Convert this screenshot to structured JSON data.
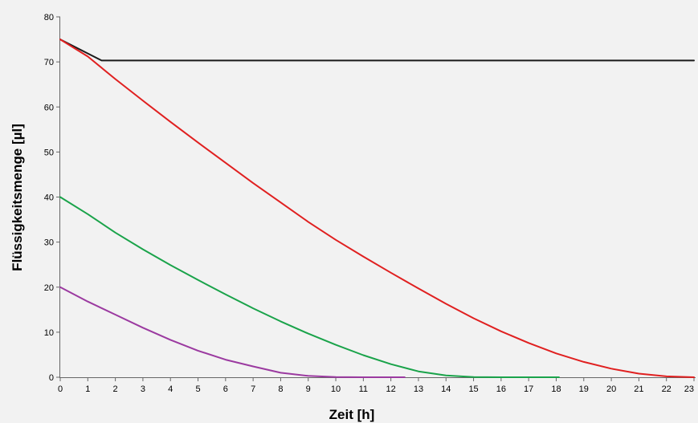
{
  "chart_data": {
    "type": "line",
    "xlabel": "Zeit [h]",
    "ylabel": "Flüssigkeitsmenge [µl]",
    "xlim": [
      0,
      23
    ],
    "ylim": [
      0,
      80
    ],
    "xticks": [
      "0",
      "1",
      "2",
      "3",
      "4",
      "5",
      "6",
      "7",
      "8",
      "9",
      "10",
      "11",
      "12",
      "13",
      "14",
      "15",
      "16",
      "17",
      "18",
      "19",
      "20",
      "21",
      "22",
      "23"
    ],
    "yticks": [
      "0",
      "10",
      "20",
      "30",
      "40",
      "50",
      "60",
      "70",
      "80"
    ],
    "grid": false,
    "legend": "none",
    "series": [
      {
        "color": "#1a1a1a",
        "x": [
          0,
          1.5,
          23
        ],
        "y": [
          75,
          70.3,
          70.3
        ]
      },
      {
        "color": "#e02020",
        "x": [
          0,
          1,
          2,
          3,
          4,
          5,
          6,
          7,
          8,
          9,
          10,
          11,
          12,
          13,
          14,
          15,
          16,
          17,
          18,
          19,
          20,
          21,
          22,
          23
        ],
        "y": [
          75,
          71.2,
          66.2,
          61.4,
          56.7,
          52.1,
          47.6,
          43.1,
          38.8,
          34.5,
          30.5,
          26.8,
          23.2,
          19.7,
          16.3,
          13.1,
          10.2,
          7.6,
          5.3,
          3.4,
          1.9,
          0.8,
          0.2,
          0
        ]
      },
      {
        "color": "#1aa34a",
        "x": [
          0,
          1,
          2,
          3,
          4,
          5,
          6,
          7,
          8,
          9,
          10,
          11,
          12,
          13,
          14,
          15,
          16,
          17,
          18.1
        ],
        "y": [
          40,
          36.2,
          32.1,
          28.4,
          24.9,
          21.6,
          18.4,
          15.3,
          12.4,
          9.7,
          7.2,
          4.9,
          2.9,
          1.3,
          0.4,
          0.05,
          0,
          0,
          0
        ]
      },
      {
        "color": "#9b3aa0",
        "x": [
          0,
          1,
          2,
          3,
          4,
          5,
          6,
          7,
          8,
          9,
          10,
          11,
          12,
          12.5
        ],
        "y": [
          20,
          16.8,
          13.9,
          11,
          8.3,
          5.9,
          3.9,
          2.4,
          1.0,
          0.3,
          0.05,
          0,
          0,
          0
        ]
      }
    ]
  }
}
